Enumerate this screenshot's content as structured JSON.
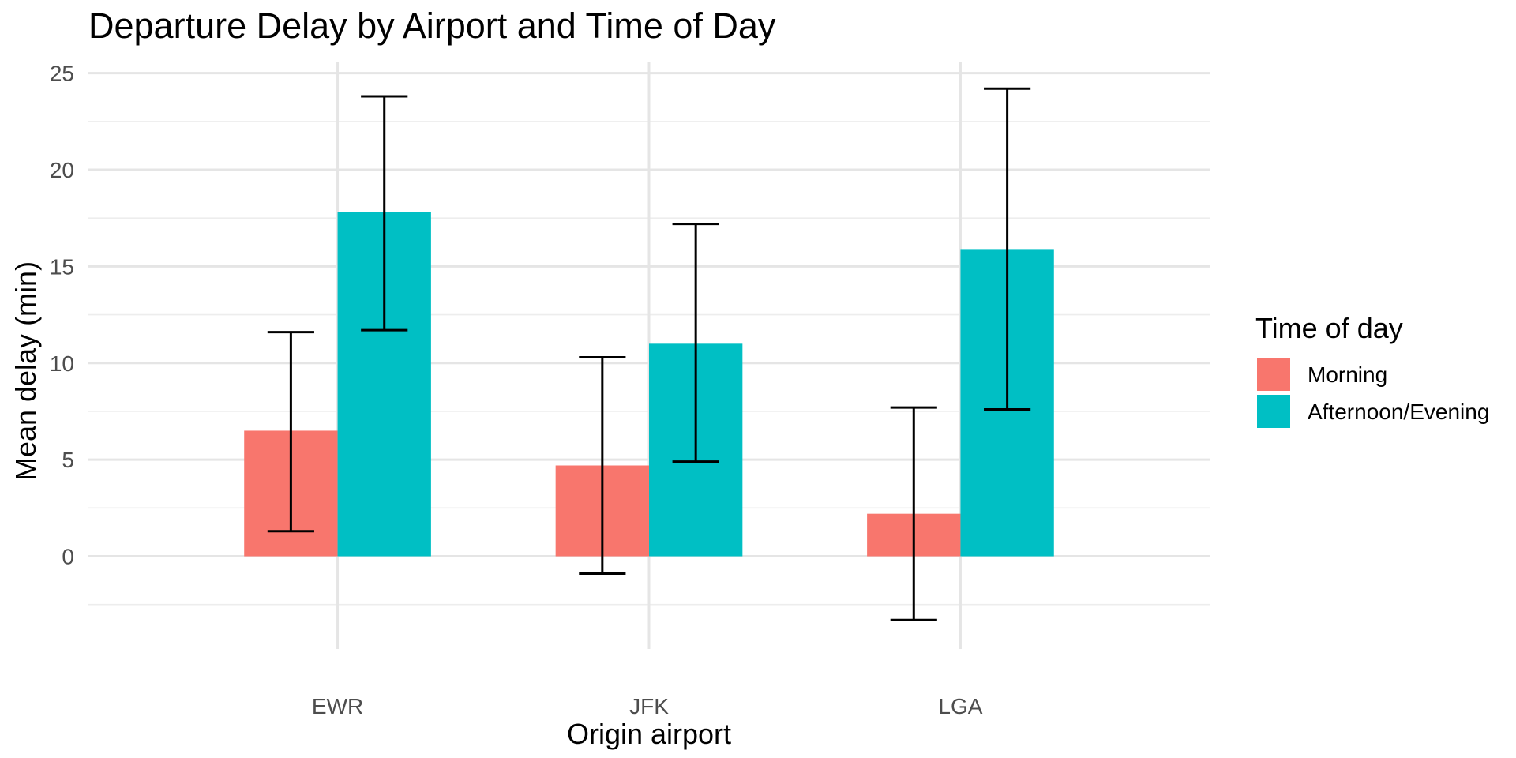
{
  "chart_data": {
    "type": "bar",
    "title": "Departure Delay by Airport and Time of Day",
    "xlabel": "Origin airport",
    "ylabel": "Mean delay (min)",
    "categories": [
      "EWR",
      "JFK",
      "LGA"
    ],
    "ylim": [
      -4.8,
      25.6
    ],
    "yticks": [
      0,
      5,
      10,
      15,
      20,
      25
    ],
    "grid": true,
    "legend": {
      "title": "Time of day",
      "position": "right"
    },
    "series": [
      {
        "name": "Morning",
        "color": "#F8766D",
        "values": [
          6.5,
          4.7,
          2.2
        ],
        "error_low": [
          1.3,
          -0.9,
          -3.3
        ],
        "error_high": [
          11.6,
          10.3,
          7.7
        ]
      },
      {
        "name": "Afternoon/Evening",
        "color": "#00BFC4",
        "values": [
          17.8,
          11.0,
          15.9
        ],
        "error_low": [
          11.7,
          4.9,
          7.6
        ],
        "error_high": [
          23.8,
          17.2,
          24.2
        ]
      }
    ]
  }
}
